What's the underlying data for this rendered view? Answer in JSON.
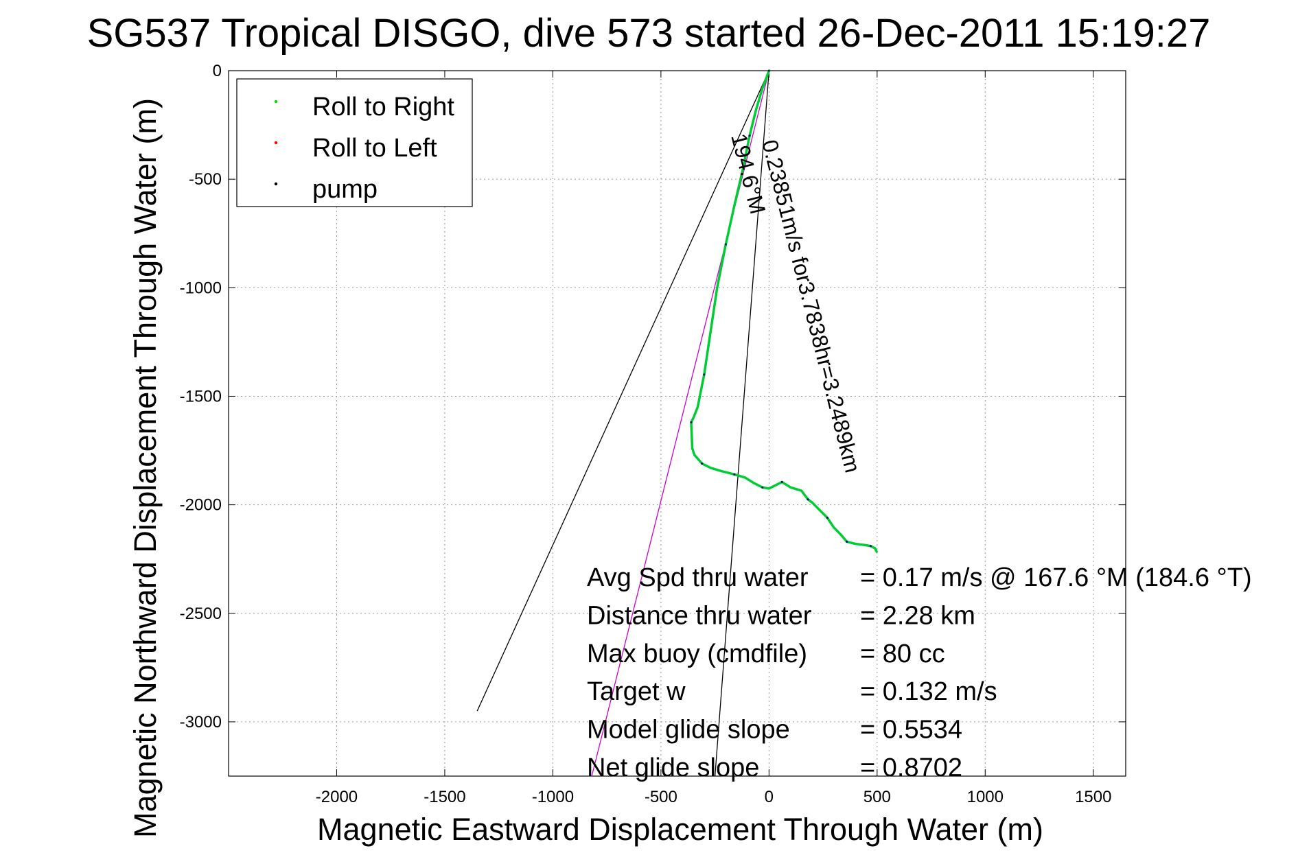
{
  "chart_data": {
    "type": "line",
    "title": "SG537 Tropical DISGO, dive 573 started 26-Dec-2011 15:19:27",
    "xlabel": "Magnetic Eastward Displacement Through Water (m)",
    "ylabel": "Magnetic Northward Displacement Through Water (m)",
    "xlim": [
      -2500,
      1650
    ],
    "ylim": [
      -3250,
      0
    ],
    "xticks": [
      -2000,
      -1500,
      -1000,
      -500,
      0,
      500,
      1000,
      1500
    ],
    "yticks": [
      0,
      -500,
      -1000,
      -1500,
      -2000,
      -2500,
      -3000
    ],
    "grid": true,
    "legend_position": "top-left",
    "legend": [
      {
        "label": "Roll to Right",
        "color": "#00dd00"
      },
      {
        "label": "Roll to Left",
        "color": "#ff0000"
      },
      {
        "label": "pump",
        "color": "#000000"
      }
    ],
    "series": [
      {
        "name": "track",
        "color": "#00cc33",
        "x": [
          0,
          -30,
          -60,
          -90,
          -120,
          -160,
          -200,
          -240,
          -270,
          -300,
          -330,
          -350,
          -360,
          -355,
          -345,
          -310,
          -270,
          -220,
          -160,
          -110,
          -70,
          -30,
          0,
          30,
          60,
          100,
          150,
          180,
          200,
          230,
          270,
          300,
          330,
          360,
          400,
          440,
          470,
          490,
          500
        ],
        "y": [
          0,
          -80,
          -180,
          -300,
          -450,
          -620,
          -800,
          -1000,
          -1200,
          -1400,
          -1550,
          -1600,
          -1620,
          -1740,
          -1770,
          -1810,
          -1830,
          -1845,
          -1860,
          -1875,
          -1900,
          -1920,
          -1925,
          -1910,
          -1895,
          -1920,
          -1935,
          -1975,
          -1990,
          -2020,
          -2060,
          -2105,
          -2135,
          -2170,
          -2180,
          -2185,
          -2190,
          -2200,
          -2220
        ]
      }
    ],
    "guide_lines": [
      {
        "name": "current-line",
        "color": "#cc00cc",
        "x": [
          0,
          -820
        ],
        "y": [
          0,
          -3250
        ]
      },
      {
        "name": "cone-left-line",
        "color": "#000000",
        "x": [
          0,
          -1350
        ],
        "y": [
          0,
          -2950
        ]
      },
      {
        "name": "cone-right-line",
        "color": "#000000",
        "x": [
          0,
          -250
        ],
        "y": [
          0,
          -3250
        ]
      }
    ],
    "annotations": {
      "diag1": "0.23851m/s for3.7838hr=3.2489km",
      "diag2": "194.6°M",
      "stats": [
        {
          "label": "Avg Spd thru water",
          "value": "=  0.17 m/s @ 167.6 °M (184.6 °T)"
        },
        {
          "label": "Distance thru water",
          "value": "=  2.28 km"
        },
        {
          "label": "Max buoy (cmdfile)",
          "value": "= 80 cc"
        },
        {
          "label": "Target w",
          "value": "= 0.132 m/s"
        },
        {
          "label": "Model glide slope",
          "value": "= 0.5534"
        },
        {
          "label": "Net glide slope",
          "value": "= 0.8702"
        }
      ]
    }
  }
}
